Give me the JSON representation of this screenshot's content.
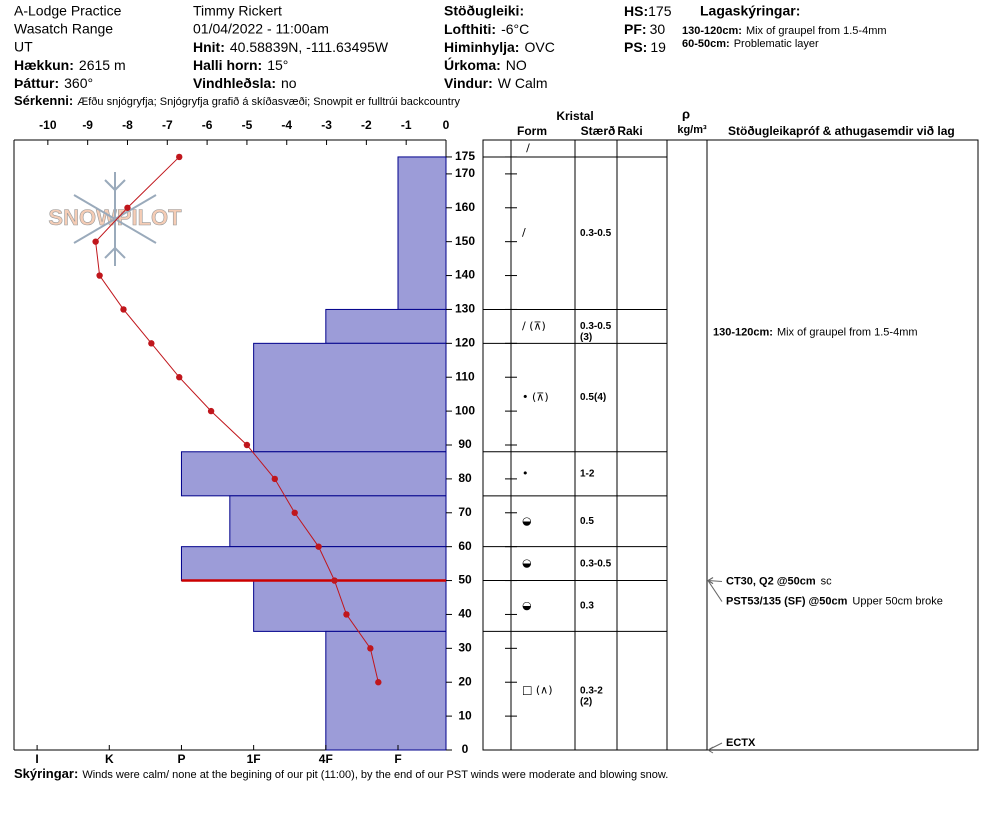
{
  "header": {
    "location": "A-Lodge Practice",
    "range": "Wasatch Range",
    "state": "UT",
    "elevation_label": "Hækkun:",
    "elevation": "2615 m",
    "aspect_label": "Þáttur:",
    "aspect": "360°",
    "observer": "Timmy  Rickert",
    "datetime": "01/04/2022 - 11:00am",
    "coords_label": "Hnit:",
    "coords": "40.58839N, -111.63495W",
    "slope_label": "Halli horn:",
    "slope": "15°",
    "wind_loading_label": "Vindhleðsla:",
    "wind_loading": "no",
    "stability_label": "Stöðugleiki:",
    "air_temp_label": "Lofthiti:",
    "air_temp": "-6°C",
    "sky_label": "Himinhylja:",
    "sky": "OVC",
    "precip_label": "Úrkoma:",
    "precip": "NO",
    "wind_label": "Vindur:",
    "wind": "W Calm",
    "hs_label": "HS:",
    "hs": "175",
    "pf_label": "PF:",
    "pf": "30",
    "ps_label": "PS:",
    "ps": "19",
    "layer_notes_title": "Lagaskýringar:",
    "layer_notes": [
      {
        "range": "130-120cm:",
        "text": "Mix of graupel from 1.5-4mm"
      },
      {
        "range": "60-50cm:",
        "text": "Problematic layer"
      }
    ],
    "features_label": "Sérkenni:",
    "features": "Æfðu snjógryfja;  Snjógryfja grafið á skíðasvæði;  Snowpit er fulltrúi backcountry"
  },
  "chart_data": {
    "type": "profile",
    "watermark": "SNOWPILOT",
    "xlim": [
      -10.85,
      0
    ],
    "xticks": [
      -10,
      -9,
      -8,
      -7,
      -6,
      -5,
      -4,
      -3,
      -2,
      -1,
      0
    ],
    "ylim": [
      0,
      180
    ],
    "yticks": [
      0,
      10,
      20,
      30,
      40,
      50,
      60,
      70,
      80,
      90,
      100,
      110,
      120,
      130,
      140,
      150,
      160,
      170,
      175
    ],
    "temperature": {
      "depth": [
        175,
        160,
        150,
        140,
        130,
        120,
        110,
        100,
        90,
        80,
        70,
        60,
        50,
        40,
        30,
        20
      ],
      "values": [
        -6.7,
        -8.0,
        -8.8,
        -8.7,
        -8.1,
        -7.4,
        -6.7,
        -5.9,
        -5.0,
        -4.3,
        -3.8,
        -3.2,
        -2.8,
        -2.5,
        -1.9,
        -1.7
      ],
      "color": "#c0161c"
    },
    "hardness_xlim": [
      6.32,
      0.335
    ],
    "hardness_xticks": [
      {
        "value": 6,
        "label": "I"
      },
      {
        "value": 5,
        "label": "K"
      },
      {
        "value": 4,
        "label": "P"
      },
      {
        "value": 3,
        "label": "1F"
      },
      {
        "value": 2,
        "label": "4F"
      },
      {
        "value": 1,
        "label": "F"
      }
    ],
    "hardness": {
      "tops": [
        175,
        130,
        120,
        88,
        75,
        60,
        50,
        35
      ],
      "bottoms": [
        130,
        120,
        88,
        75,
        60,
        50,
        35,
        0
      ],
      "values": [
        1,
        2,
        3,
        4,
        3.33,
        4,
        3,
        2
      ],
      "color": "#9c9cd8",
      "edge": "#00008b"
    },
    "problem_layer_depth": 50,
    "problem_color": "#cc0000"
  },
  "layers_table": {
    "kristal": "Kristal",
    "form": "Form",
    "size": "Stærð",
    "moisture": "Raki",
    "rho": "ρ",
    "density_unit": "kg/m³",
    "comments": "Stöðugleikapróf & athugasemdir við lag",
    "surface_form": "/",
    "rows": [
      {
        "form": "/",
        "size": "0.3-0.5",
        "size2": null
      },
      {
        "form": "/ (⊼)",
        "size": "0.3-0.5",
        "size2": "(3)",
        "comment": {
          "range": "130-120cm:",
          "text": "Mix of graupel from 1.5-4mm"
        }
      },
      {
        "form": "• (⊼)",
        "size": "0.5",
        "size2": "(4)"
      },
      {
        "form": "•",
        "size": "1-2",
        "size2": null
      },
      {
        "form": "◒",
        "size": "0.5",
        "size2": null
      },
      {
        "form": "◒",
        "size": "0.3-0.5",
        "size2": null
      },
      {
        "form": "◒",
        "size": "0.3",
        "size2": null
      },
      {
        "form": "□ (∧)",
        "size": "0.3-2",
        "size2": "(2)"
      }
    ],
    "tests": [
      {
        "depth": 50,
        "label": "CT30, Q2 @50cm",
        "note": "sc"
      },
      {
        "depth": 50,
        "label": "PST53/135 (SF) @50cm",
        "note": "Upper 50cm broke"
      },
      {
        "depth": 0,
        "label": "ECTX"
      }
    ]
  },
  "footer": {
    "label": "Skýringar:",
    "text": "Winds were calm/ none at the begining of our pit (11:00), by the end of our PST winds were moderate and blowing snow."
  }
}
